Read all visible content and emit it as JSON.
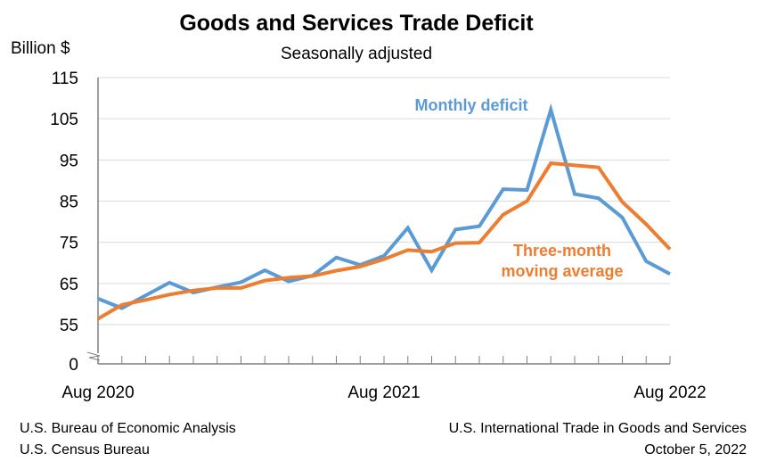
{
  "chart_data": {
    "type": "line",
    "title": "Goods and Services Trade Deficit",
    "subtitle": "Seasonally adjusted",
    "ylabel": "Billion $",
    "x_tick_labels": [
      "Aug 2020",
      "Aug 2021",
      "Aug 2022"
    ],
    "y_ticks": [
      0,
      55,
      65,
      75,
      85,
      95,
      105,
      115
    ],
    "y_tick_labels": [
      "0",
      "55",
      "65",
      "75",
      "85",
      "95",
      "105",
      "115"
    ],
    "ylim": [
      55,
      115
    ],
    "y_axis_break": true,
    "grid": "horizontal",
    "series": [
      {
        "name": "Monthly deficit",
        "color": "#5B9BD5",
        "values": [
          61.3,
          59.0,
          62.1,
          65.2,
          62.8,
          64.1,
          65.3,
          68.2,
          65.5,
          66.9,
          71.3,
          69.5,
          71.7,
          78.5,
          68.2,
          78.1,
          78.9,
          87.9,
          87.7,
          107.2,
          86.7,
          85.7,
          81.0,
          70.4,
          67.3
        ]
      },
      {
        "name": "Three-month moving average",
        "label_lines": [
          "Three-month",
          "moving average"
        ],
        "color": "#ED7D31",
        "values": [
          56.4,
          59.8,
          61.0,
          62.3,
          63.3,
          63.9,
          63.9,
          65.7,
          66.4,
          66.8,
          68.1,
          69.1,
          70.9,
          73.1,
          72.7,
          74.8,
          74.9,
          81.7,
          85.0,
          94.2,
          93.7,
          93.2,
          84.8,
          79.4,
          73.3
        ]
      }
    ]
  },
  "footer": {
    "left_1": "U.S. Bureau of Economic Analysis",
    "left_2": "U.S. Census Bureau",
    "right_1": "U.S. International Trade in Goods and Services",
    "right_2": "October 5, 2022"
  }
}
